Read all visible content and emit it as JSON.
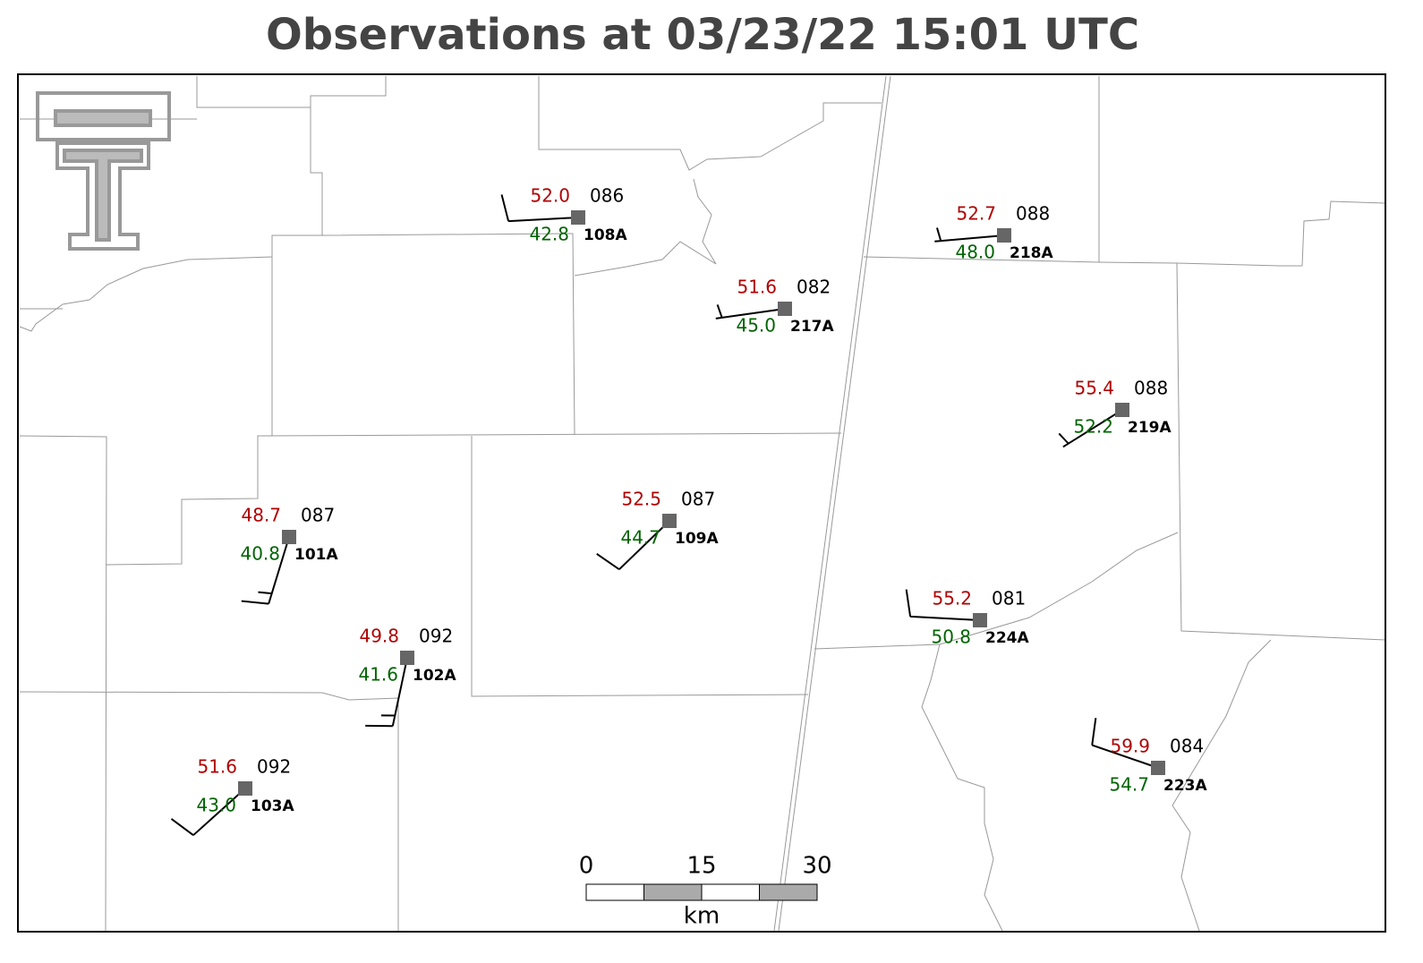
{
  "title": "Observations at 03/23/22 15:01 UTC",
  "stations": [
    {
      "id": "108A",
      "temperature": 52.0,
      "dewpoint": 42.8,
      "pressure": "086",
      "wind_direction": 267,
      "wind_speed": 10
    },
    {
      "id": "217A",
      "temperature": 51.6,
      "dewpoint": 45.0,
      "pressure": "082",
      "wind_direction": 262,
      "wind_speed": 5
    },
    {
      "id": "218A",
      "temperature": 52.7,
      "dewpoint": 48.0,
      "pressure": "088",
      "wind_direction": 265,
      "wind_speed": 5
    },
    {
      "id": "219A",
      "temperature": 55.4,
      "dewpoint": 52.2,
      "pressure": "088",
      "wind_direction": 238,
      "wind_speed": 5
    },
    {
      "id": "101A",
      "temperature": 48.7,
      "dewpoint": 40.8,
      "pressure": "087",
      "wind_direction": 197,
      "wind_speed": 15
    },
    {
      "id": "102A",
      "temperature": 49.8,
      "dewpoint": 41.6,
      "pressure": "092",
      "wind_direction": 192,
      "wind_speed": 15
    },
    {
      "id": "109A",
      "temperature": 52.5,
      "dewpoint": 44.7,
      "pressure": "087",
      "wind_direction": 226,
      "wind_speed": 10
    },
    {
      "id": "103A",
      "temperature": 51.6,
      "dewpoint": 43.0,
      "pressure": "092",
      "wind_direction": 228,
      "wind_speed": 10
    },
    {
      "id": "224A",
      "temperature": 55.2,
      "dewpoint": 50.8,
      "pressure": "081",
      "wind_direction": 273,
      "wind_speed": 10
    },
    {
      "id": "223A",
      "temperature": 59.9,
      "dewpoint": 54.7,
      "pressure": "084",
      "wind_direction": 289,
      "wind_speed": 10
    }
  ],
  "scale_bar": {
    "ticks": [
      0,
      15,
      30
    ],
    "unit": "km"
  }
}
